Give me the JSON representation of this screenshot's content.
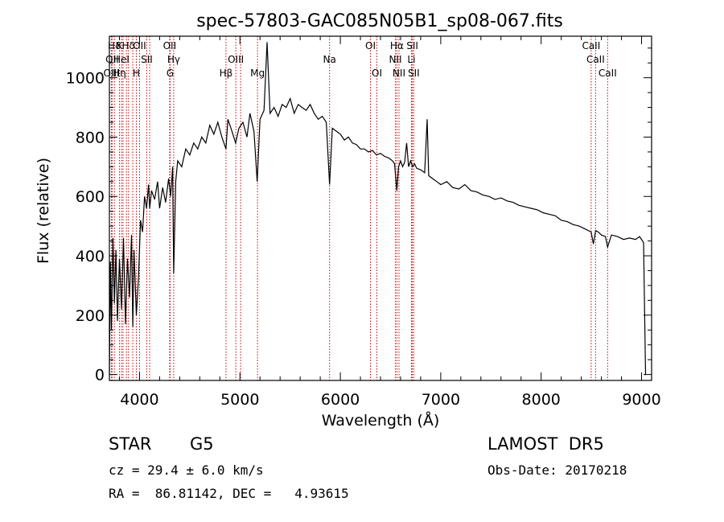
{
  "chart_data": {
    "type": "line",
    "title": "spec-57803-GAC085N05B1_sp08-067.fits",
    "xlabel": "Wavelength (Å)",
    "ylabel": "Flux (relative)",
    "xlim": [
      3700,
      9100
    ],
    "ylim": [
      -20,
      1140
    ],
    "xticks": [
      4000,
      5000,
      6000,
      7000,
      8000,
      9000
    ],
    "yticks": [
      0,
      200,
      400,
      600,
      800,
      1000
    ],
    "grid": false,
    "x": [
      3700,
      3710,
      3720,
      3735,
      3750,
      3765,
      3780,
      3800,
      3820,
      3840,
      3860,
      3880,
      3900,
      3920,
      3933,
      3945,
      3968,
      3990,
      4010,
      4030,
      4050,
      4070,
      4090,
      4101,
      4120,
      4150,
      4180,
      4200,
      4230,
      4260,
      4290,
      4310,
      4330,
      4340,
      4360,
      4380,
      4420,
      4460,
      4500,
      4540,
      4580,
      4620,
      4660,
      4700,
      4740,
      4780,
      4820,
      4861,
      4880,
      4920,
      4957,
      4990,
      5030,
      5070,
      5100,
      5140,
      5172,
      5200,
      5240,
      5270,
      5300,
      5340,
      5380,
      5420,
      5460,
      5500,
      5540,
      5580,
      5620,
      5660,
      5700,
      5740,
      5780,
      5820,
      5860,
      5893,
      5920,
      5960,
      6000,
      6040,
      6080,
      6120,
      6160,
      6200,
      6240,
      6280,
      6320,
      6360,
      6400,
      6440,
      6480,
      6520,
      6540,
      6563,
      6580,
      6600,
      6620,
      6640,
      6660,
      6680,
      6700,
      6720,
      6740,
      6760,
      6800,
      6840,
      6865,
      6880,
      6920,
      6960,
      7000,
      7060,
      7120,
      7180,
      7240,
      7300,
      7360,
      7420,
      7480,
      7540,
      7600,
      7660,
      7720,
      7780,
      7840,
      7900,
      7960,
      8020,
      8080,
      8140,
      8200,
      8260,
      8320,
      8380,
      8440,
      8498,
      8520,
      8542,
      8570,
      8600,
      8640,
      8662,
      8700,
      8760,
      8820,
      8880,
      8940,
      8980,
      9020,
      9040,
      9045
    ],
    "y": [
      0,
      380,
      150,
      460,
      240,
      420,
      180,
      390,
      220,
      460,
      170,
      390,
      260,
      470,
      160,
      420,
      200,
      330,
      520,
      480,
      600,
      560,
      640,
      560,
      620,
      590,
      650,
      560,
      630,
      580,
      660,
      600,
      700,
      340,
      650,
      720,
      700,
      760,
      740,
      780,
      760,
      800,
      780,
      840,
      810,
      850,
      800,
      760,
      860,
      820,
      780,
      830,
      850,
      800,
      880,
      820,
      650,
      860,
      890,
      1120,
      880,
      900,
      870,
      910,
      900,
      930,
      880,
      910,
      900,
      890,
      910,
      880,
      860,
      870,
      850,
      640,
      830,
      820,
      810,
      790,
      800,
      780,
      775,
      760,
      760,
      750,
      755,
      740,
      745,
      735,
      730,
      720,
      710,
      620,
      700,
      720,
      700,
      715,
      780,
      700,
      720,
      700,
      710,
      695,
      690,
      680,
      860,
      670,
      660,
      650,
      640,
      650,
      630,
      625,
      640,
      620,
      615,
      605,
      600,
      590,
      595,
      585,
      580,
      570,
      565,
      560,
      555,
      545,
      540,
      535,
      520,
      515,
      505,
      500,
      490,
      480,
      440,
      485,
      480,
      470,
      465,
      430,
      470,
      465,
      455,
      460,
      455,
      465,
      445,
      0,
      0
    ]
  },
  "spectral_lines": [
    {
      "name": "Hδ",
      "wl": 3750,
      "row": 0
    },
    {
      "name": "K",
      "wl": 3800,
      "row": 0
    },
    {
      "name": "Hδ",
      "wl": 3890,
      "row": 0
    },
    {
      "name": "OII",
      "wl": 4000,
      "row": 0
    },
    {
      "name": "OII",
      "wl": 4300,
      "row": 0
    },
    {
      "name": "OI",
      "wl": 6300,
      "row": 0
    },
    {
      "name": "Hα",
      "wl": 6563,
      "row": 0
    },
    {
      "name": "SII",
      "wl": 6717,
      "row": 0
    },
    {
      "name": "CaII",
      "wl": 8498,
      "row": 0
    },
    {
      "name": "OII",
      "wl": 3727,
      "row": 1
    },
    {
      "name": "HeI",
      "wl": 3820,
      "row": 1
    },
    {
      "name": "SII",
      "wl": 4072,
      "row": 1
    },
    {
      "name": "Hγ",
      "wl": 4340,
      "row": 1
    },
    {
      "name": "OIII",
      "wl": 4959,
      "row": 1
    },
    {
      "name": "Na",
      "wl": 5893,
      "row": 1
    },
    {
      "name": "NII",
      "wl": 6548,
      "row": 1
    },
    {
      "name": "Li",
      "wl": 6708,
      "row": 1
    },
    {
      "name": "CaII",
      "wl": 8542,
      "row": 1
    },
    {
      "name": "OIII",
      "wl": 3720,
      "row": 2
    },
    {
      "name": "Hη",
      "wl": 3800,
      "row": 2
    },
    {
      "name": "H",
      "wl": 3968,
      "row": 2
    },
    {
      "name": "G",
      "wl": 4305,
      "row": 2
    },
    {
      "name": "Hβ",
      "wl": 4861,
      "row": 2
    },
    {
      "name": "Mg",
      "wl": 5175,
      "row": 2
    },
    {
      "name": "OI",
      "wl": 6364,
      "row": 2
    },
    {
      "name": "NII",
      "wl": 6584,
      "row": 2
    },
    {
      "name": "SII",
      "wl": 6731,
      "row": 2
    },
    {
      "name": "CaII",
      "wl": 8662,
      "row": 2
    }
  ],
  "extra_line_markers": [
    3835,
    3870,
    3933,
    4101,
    4340,
    5007,
    6717
  ],
  "info": {
    "class_label": "STAR",
    "subclass_label": "G5",
    "survey_label": "LAMOST  DR5",
    "cz_text": "cz = 29.4 ± 6.0 km/s",
    "obs_date_text": "Obs-Date: 20170218",
    "radec_text": "RA =  86.81142, DEC =   4.93615"
  },
  "colors": {
    "spectrum": "#000000",
    "marker_lines": "#cc0000"
  }
}
